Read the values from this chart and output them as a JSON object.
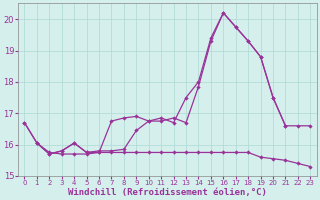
{
  "xlabel": "Windchill (Refroidissement éolien,°C)",
  "background_color": "#d5f0ec",
  "grid_color": "#aed8d4",
  "line_color": "#993399",
  "xlim": [
    -0.5,
    23.5
  ],
  "ylim": [
    15.0,
    20.5
  ],
  "yticks": [
    15,
    16,
    17,
    18,
    19,
    20
  ],
  "xticks": [
    0,
    1,
    2,
    3,
    4,
    5,
    6,
    7,
    8,
    9,
    10,
    11,
    12,
    13,
    14,
    15,
    16,
    17,
    18,
    19,
    20,
    21,
    22,
    23
  ],
  "line1_x": [
    0,
    1,
    2,
    3,
    4,
    5,
    6,
    7,
    8,
    9,
    10,
    11,
    12,
    13,
    14,
    15,
    16,
    17,
    18,
    19,
    20,
    21
  ],
  "line1_y": [
    16.7,
    16.05,
    15.7,
    15.8,
    16.05,
    15.75,
    15.75,
    16.75,
    16.85,
    16.9,
    16.75,
    16.85,
    16.7,
    17.5,
    18.0,
    19.4,
    20.2,
    19.75,
    19.3,
    18.8,
    17.5,
    16.6
  ],
  "line2_x": [
    0,
    1,
    2,
    3,
    4,
    5,
    6,
    7,
    8,
    9,
    10,
    11,
    12,
    13,
    14,
    15,
    16,
    17,
    18,
    19,
    20,
    21,
    22,
    23
  ],
  "line2_y": [
    16.7,
    16.05,
    15.7,
    15.8,
    16.05,
    15.75,
    15.8,
    15.8,
    15.85,
    16.45,
    16.75,
    16.75,
    16.85,
    16.7,
    17.85,
    19.3,
    20.2,
    19.75,
    19.3,
    18.8,
    17.5,
    16.6,
    16.6,
    16.6
  ],
  "line3_x": [
    1,
    2,
    3,
    4,
    5,
    6,
    7,
    8,
    9,
    10,
    11,
    12,
    13,
    14,
    15,
    16,
    17,
    18,
    19,
    20,
    21,
    22,
    23
  ],
  "line3_y": [
    16.05,
    15.75,
    15.7,
    15.7,
    15.7,
    15.75,
    15.75,
    15.75,
    15.75,
    15.75,
    15.75,
    15.75,
    15.75,
    15.75,
    15.75,
    15.75,
    15.75,
    15.75,
    15.6,
    15.55,
    15.5,
    15.4,
    15.3
  ]
}
